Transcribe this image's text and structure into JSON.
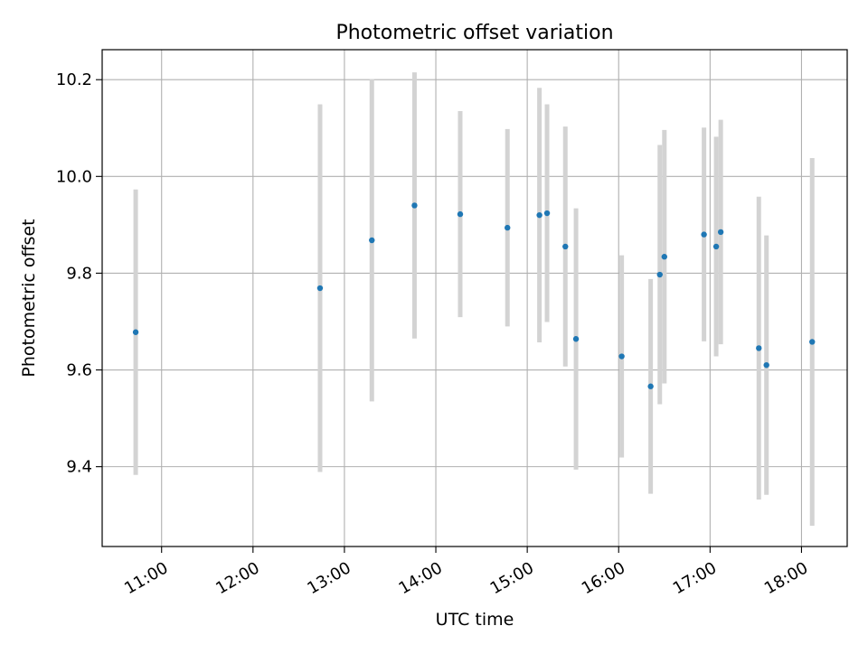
{
  "chart_data": {
    "type": "scatter",
    "title": "Photometric offset variation",
    "xlabel": "UTC time",
    "ylabel": "Photometric offset",
    "x_tick_labels": [
      "11:00",
      "12:00",
      "13:00",
      "14:00",
      "15:00",
      "16:00",
      "17:00",
      "18:00"
    ],
    "y_tick_labels": [
      "9.4",
      "9.6",
      "9.8",
      "10.0",
      "10.2"
    ],
    "xlim": [
      "10:21",
      "18:30"
    ],
    "ylim": [
      9.235,
      10.262
    ],
    "grid": true,
    "legend": "none",
    "colors": {
      "point": "#1f77b4",
      "errorbar": "#d3d3d3",
      "grid": "#b0b0b0",
      "axes": "#000000"
    },
    "series": [
      {
        "points": [
          {
            "x": "10:43",
            "y": 9.678,
            "yerr": 0.295
          },
          {
            "x": "12:44",
            "y": 9.769,
            "yerr": 0.38
          },
          {
            "x": "13:18",
            "y": 9.868,
            "yerr": 0.333
          },
          {
            "x": "13:46",
            "y": 9.94,
            "yerr": 0.275
          },
          {
            "x": "14:16",
            "y": 9.922,
            "yerr": 0.213
          },
          {
            "x": "14:47",
            "y": 9.894,
            "yerr": 0.204
          },
          {
            "x": "15:08",
            "y": 9.92,
            "yerr": 0.263
          },
          {
            "x": "15:13",
            "y": 9.924,
            "yerr": 0.225
          },
          {
            "x": "15:25",
            "y": 9.855,
            "yerr": 0.248
          },
          {
            "x": "15:32",
            "y": 9.664,
            "yerr": 0.27
          },
          {
            "x": "16:02",
            "y": 9.628,
            "yerr": 0.209
          },
          {
            "x": "16:21",
            "y": 9.566,
            "yerr": 0.222
          },
          {
            "x": "16:27",
            "y": 9.797,
            "yerr": 0.268
          },
          {
            "x": "16:30",
            "y": 9.834,
            "yerr": 0.262
          },
          {
            "x": "16:56",
            "y": 9.88,
            "yerr": 0.221
          },
          {
            "x": "17:04",
            "y": 9.855,
            "yerr": 0.227
          },
          {
            "x": "17:07",
            "y": 9.885,
            "yerr": 0.232
          },
          {
            "x": "17:32",
            "y": 9.645,
            "yerr": 0.313
          },
          {
            "x": "17:37",
            "y": 9.61,
            "yerr": 0.268
          },
          {
            "x": "18:07",
            "y": 9.658,
            "yerr": 0.38
          }
        ]
      }
    ]
  }
}
